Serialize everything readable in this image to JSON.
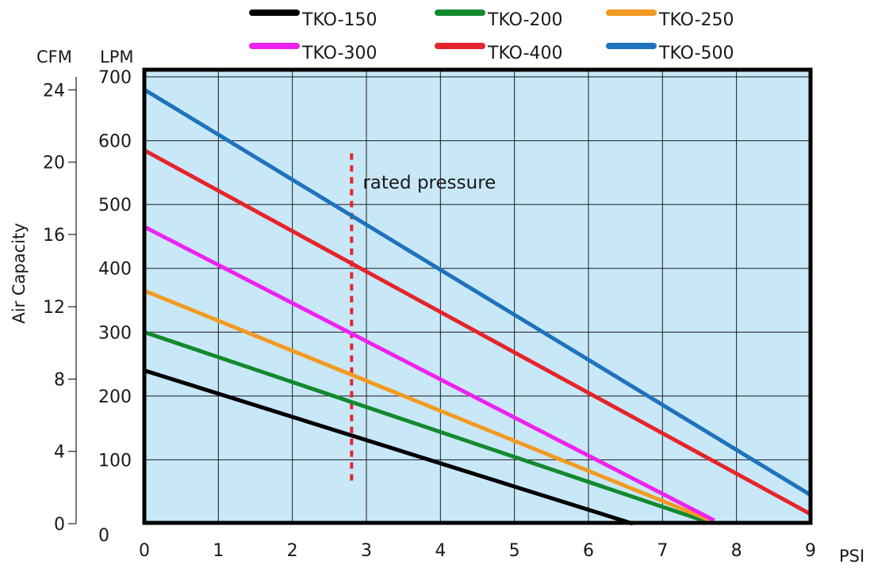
{
  "chart_data": {
    "type": "line",
    "x": {
      "label": "PSI",
      "range": [
        0,
        9
      ],
      "ticks": [
        "0",
        "1",
        "2",
        "3",
        "4",
        "5",
        "6",
        "7",
        "8",
        "9"
      ]
    },
    "y_primary": {
      "unit": "LPM",
      "range": [
        0,
        700
      ],
      "ticks": [
        "0",
        "100",
        "200",
        "300",
        "400",
        "500",
        "600",
        "700"
      ]
    },
    "y_secondary": {
      "unit": "CFM",
      "label": "Air Capacity",
      "range": [
        0,
        24.72
      ],
      "tick_values": [
        0,
        4,
        8,
        12,
        16,
        20,
        24
      ],
      "ticks": [
        "0",
        "4",
        "8",
        "12",
        "16",
        "20",
        "24"
      ]
    },
    "grid": true,
    "background_color": "#c8e8f8",
    "legend": {
      "placement": "top",
      "columns": 3
    },
    "series": [
      {
        "name": "TKO-150",
        "color": "#000000",
        "x": [
          0,
          6.6
        ],
        "y": [
          240,
          0
        ]
      },
      {
        "name": "TKO-200",
        "color": "#138a2e",
        "x": [
          0,
          7.6
        ],
        "y": [
          300,
          3
        ]
      },
      {
        "name": "TKO-250",
        "color": "#f39a22",
        "x": [
          0,
          7.65
        ],
        "y": [
          365,
          5
        ]
      },
      {
        "name": "TKO-300",
        "color": "#ee22ee",
        "x": [
          0,
          7.7
        ],
        "y": [
          465,
          5
        ]
      },
      {
        "name": "TKO-400",
        "color": "#e5242b",
        "x": [
          0,
          9.0
        ],
        "y": [
          585,
          15
        ]
      },
      {
        "name": "TKO-500",
        "color": "#1f72bd",
        "x": [
          0,
          9.0
        ],
        "y": [
          680,
          45
        ]
      }
    ],
    "annotations": [
      {
        "text": "rated pressure",
        "x": 2.8,
        "y_range": [
          60,
          580
        ],
        "color": "#e5242b",
        "style": "dotted"
      }
    ]
  }
}
